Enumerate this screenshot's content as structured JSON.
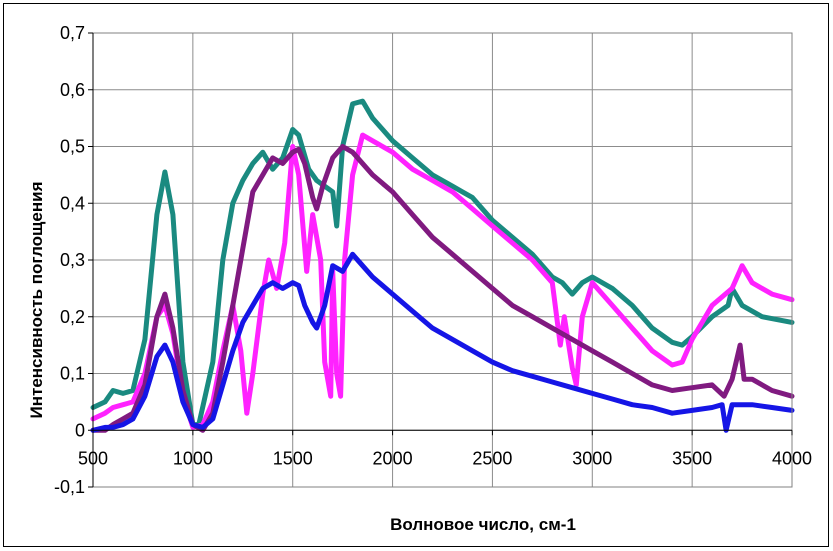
{
  "chart_data": {
    "type": "line",
    "xlabel": "Волновое число, см-1",
    "ylabel": "Интенсивность поглощения",
    "xlim": [
      500,
      4000
    ],
    "ylim": [
      -0.1,
      0.7
    ],
    "x_ticks": [
      "500",
      "1000",
      "1500",
      "2000",
      "2500",
      "3000",
      "3500",
      "4000"
    ],
    "y_ticks": [
      "-0,1",
      "0",
      "0,1",
      "0,2",
      "0,3",
      "0,4",
      "0,5",
      "0,6",
      "0,7"
    ],
    "grid": true,
    "legend": "none",
    "series": [
      {
        "color": "#1a8a80",
        "points": [
          [
            500,
            0.04
          ],
          [
            560,
            0.05
          ],
          [
            600,
            0.07
          ],
          [
            650,
            0.065
          ],
          [
            700,
            0.07
          ],
          [
            760,
            0.16
          ],
          [
            820,
            0.38
          ],
          [
            860,
            0.455
          ],
          [
            900,
            0.38
          ],
          [
            950,
            0.12
          ],
          [
            1000,
            0.01
          ],
          [
            1030,
            0.01
          ],
          [
            1100,
            0.12
          ],
          [
            1150,
            0.3
          ],
          [
            1200,
            0.4
          ],
          [
            1250,
            0.44
          ],
          [
            1300,
            0.47
          ],
          [
            1350,
            0.49
          ],
          [
            1400,
            0.46
          ],
          [
            1450,
            0.48
          ],
          [
            1500,
            0.53
          ],
          [
            1530,
            0.52
          ],
          [
            1580,
            0.46
          ],
          [
            1620,
            0.44
          ],
          [
            1660,
            0.43
          ],
          [
            1700,
            0.42
          ],
          [
            1720,
            0.36
          ],
          [
            1750,
            0.5
          ],
          [
            1800,
            0.575
          ],
          [
            1850,
            0.58
          ],
          [
            1900,
            0.55
          ],
          [
            2000,
            0.51
          ],
          [
            2100,
            0.48
          ],
          [
            2200,
            0.45
          ],
          [
            2300,
            0.43
          ],
          [
            2350,
            0.42
          ],
          [
            2400,
            0.41
          ],
          [
            2500,
            0.37
          ],
          [
            2600,
            0.34
          ],
          [
            2700,
            0.31
          ],
          [
            2800,
            0.27
          ],
          [
            2850,
            0.26
          ],
          [
            2900,
            0.24
          ],
          [
            2950,
            0.26
          ],
          [
            3000,
            0.27
          ],
          [
            3100,
            0.25
          ],
          [
            3200,
            0.22
          ],
          [
            3300,
            0.18
          ],
          [
            3400,
            0.155
          ],
          [
            3450,
            0.15
          ],
          [
            3500,
            0.165
          ],
          [
            3600,
            0.2
          ],
          [
            3680,
            0.22
          ],
          [
            3700,
            0.25
          ],
          [
            3750,
            0.22
          ],
          [
            3850,
            0.2
          ],
          [
            4000,
            0.19
          ]
        ]
      },
      {
        "color": "#ff22ff",
        "points": [
          [
            500,
            0.02
          ],
          [
            560,
            0.03
          ],
          [
            600,
            0.04
          ],
          [
            650,
            0.045
          ],
          [
            700,
            0.05
          ],
          [
            760,
            0.1
          ],
          [
            820,
            0.2
          ],
          [
            860,
            0.22
          ],
          [
            900,
            0.17
          ],
          [
            950,
            0.06
          ],
          [
            1000,
            0.005
          ],
          [
            1050,
            0.01
          ],
          [
            1100,
            0.05
          ],
          [
            1150,
            0.14
          ],
          [
            1200,
            0.22
          ],
          [
            1240,
            0.14
          ],
          [
            1270,
            0.03
          ],
          [
            1300,
            0.1
          ],
          [
            1350,
            0.24
          ],
          [
            1380,
            0.3
          ],
          [
            1420,
            0.25
          ],
          [
            1460,
            0.33
          ],
          [
            1500,
            0.5
          ],
          [
            1530,
            0.45
          ],
          [
            1570,
            0.28
          ],
          [
            1600,
            0.38
          ],
          [
            1640,
            0.3
          ],
          [
            1660,
            0.12
          ],
          [
            1690,
            0.06
          ],
          [
            1700,
            0.28
          ],
          [
            1720,
            0.1
          ],
          [
            1740,
            0.06
          ],
          [
            1760,
            0.3
          ],
          [
            1800,
            0.45
          ],
          [
            1850,
            0.52
          ],
          [
            1900,
            0.51
          ],
          [
            2000,
            0.49
          ],
          [
            2100,
            0.46
          ],
          [
            2200,
            0.44
          ],
          [
            2300,
            0.42
          ],
          [
            2400,
            0.39
          ],
          [
            2500,
            0.36
          ],
          [
            2600,
            0.33
          ],
          [
            2700,
            0.3
          ],
          [
            2800,
            0.26
          ],
          [
            2840,
            0.15
          ],
          [
            2860,
            0.2
          ],
          [
            2900,
            0.11
          ],
          [
            2920,
            0.08
          ],
          [
            2950,
            0.2
          ],
          [
            3000,
            0.26
          ],
          [
            3100,
            0.22
          ],
          [
            3200,
            0.18
          ],
          [
            3300,
            0.14
          ],
          [
            3400,
            0.115
          ],
          [
            3450,
            0.12
          ],
          [
            3500,
            0.16
          ],
          [
            3600,
            0.22
          ],
          [
            3700,
            0.25
          ],
          [
            3750,
            0.29
          ],
          [
            3800,
            0.26
          ],
          [
            3900,
            0.24
          ],
          [
            4000,
            0.23
          ]
        ]
      },
      {
        "color": "#801a80",
        "points": [
          [
            500,
            0.0
          ],
          [
            560,
            0.0
          ],
          [
            600,
            0.01
          ],
          [
            650,
            0.02
          ],
          [
            700,
            0.03
          ],
          [
            760,
            0.08
          ],
          [
            820,
            0.2
          ],
          [
            860,
            0.24
          ],
          [
            900,
            0.18
          ],
          [
            950,
            0.07
          ],
          [
            1000,
            0.01
          ],
          [
            1050,
            0.0
          ],
          [
            1100,
            0.03
          ],
          [
            1150,
            0.12
          ],
          [
            1200,
            0.22
          ],
          [
            1250,
            0.32
          ],
          [
            1300,
            0.42
          ],
          [
            1350,
            0.45
          ],
          [
            1400,
            0.48
          ],
          [
            1450,
            0.47
          ],
          [
            1500,
            0.49
          ],
          [
            1530,
            0.495
          ],
          [
            1560,
            0.47
          ],
          [
            1600,
            0.41
          ],
          [
            1620,
            0.39
          ],
          [
            1650,
            0.43
          ],
          [
            1700,
            0.48
          ],
          [
            1750,
            0.5
          ],
          [
            1800,
            0.49
          ],
          [
            1900,
            0.45
          ],
          [
            2000,
            0.42
          ],
          [
            2100,
            0.38
          ],
          [
            2200,
            0.34
          ],
          [
            2300,
            0.31
          ],
          [
            2400,
            0.28
          ],
          [
            2500,
            0.25
          ],
          [
            2600,
            0.22
          ],
          [
            2700,
            0.2
          ],
          [
            2800,
            0.18
          ],
          [
            2900,
            0.16
          ],
          [
            3000,
            0.14
          ],
          [
            3100,
            0.12
          ],
          [
            3200,
            0.1
          ],
          [
            3300,
            0.08
          ],
          [
            3400,
            0.07
          ],
          [
            3500,
            0.075
          ],
          [
            3600,
            0.08
          ],
          [
            3660,
            0.06
          ],
          [
            3700,
            0.09
          ],
          [
            3740,
            0.15
          ],
          [
            3760,
            0.09
          ],
          [
            3800,
            0.09
          ],
          [
            3900,
            0.07
          ],
          [
            4000,
            0.06
          ]
        ]
      },
      {
        "color": "#1515e6",
        "points": [
          [
            500,
            0.0
          ],
          [
            560,
            0.005
          ],
          [
            600,
            0.005
          ],
          [
            650,
            0.01
          ],
          [
            700,
            0.02
          ],
          [
            760,
            0.06
          ],
          [
            820,
            0.13
          ],
          [
            860,
            0.15
          ],
          [
            900,
            0.12
          ],
          [
            950,
            0.05
          ],
          [
            1000,
            0.01
          ],
          [
            1050,
            0.005
          ],
          [
            1100,
            0.02
          ],
          [
            1150,
            0.08
          ],
          [
            1200,
            0.14
          ],
          [
            1250,
            0.19
          ],
          [
            1300,
            0.22
          ],
          [
            1350,
            0.25
          ],
          [
            1400,
            0.26
          ],
          [
            1450,
            0.25
          ],
          [
            1500,
            0.26
          ],
          [
            1530,
            0.255
          ],
          [
            1560,
            0.22
          ],
          [
            1600,
            0.19
          ],
          [
            1620,
            0.18
          ],
          [
            1660,
            0.22
          ],
          [
            1700,
            0.29
          ],
          [
            1750,
            0.28
          ],
          [
            1800,
            0.31
          ],
          [
            1850,
            0.29
          ],
          [
            1900,
            0.27
          ],
          [
            2000,
            0.24
          ],
          [
            2100,
            0.21
          ],
          [
            2200,
            0.18
          ],
          [
            2300,
            0.16
          ],
          [
            2400,
            0.14
          ],
          [
            2500,
            0.12
          ],
          [
            2600,
            0.105
          ],
          [
            2700,
            0.095
          ],
          [
            2800,
            0.085
          ],
          [
            2900,
            0.075
          ],
          [
            3000,
            0.065
          ],
          [
            3100,
            0.055
          ],
          [
            3200,
            0.045
          ],
          [
            3300,
            0.04
          ],
          [
            3400,
            0.03
          ],
          [
            3500,
            0.035
          ],
          [
            3600,
            0.04
          ],
          [
            3650,
            0.045
          ],
          [
            3670,
            0.0
          ],
          [
            3700,
            0.045
          ],
          [
            3800,
            0.045
          ],
          [
            3900,
            0.04
          ],
          [
            4000,
            0.035
          ]
        ]
      }
    ]
  }
}
